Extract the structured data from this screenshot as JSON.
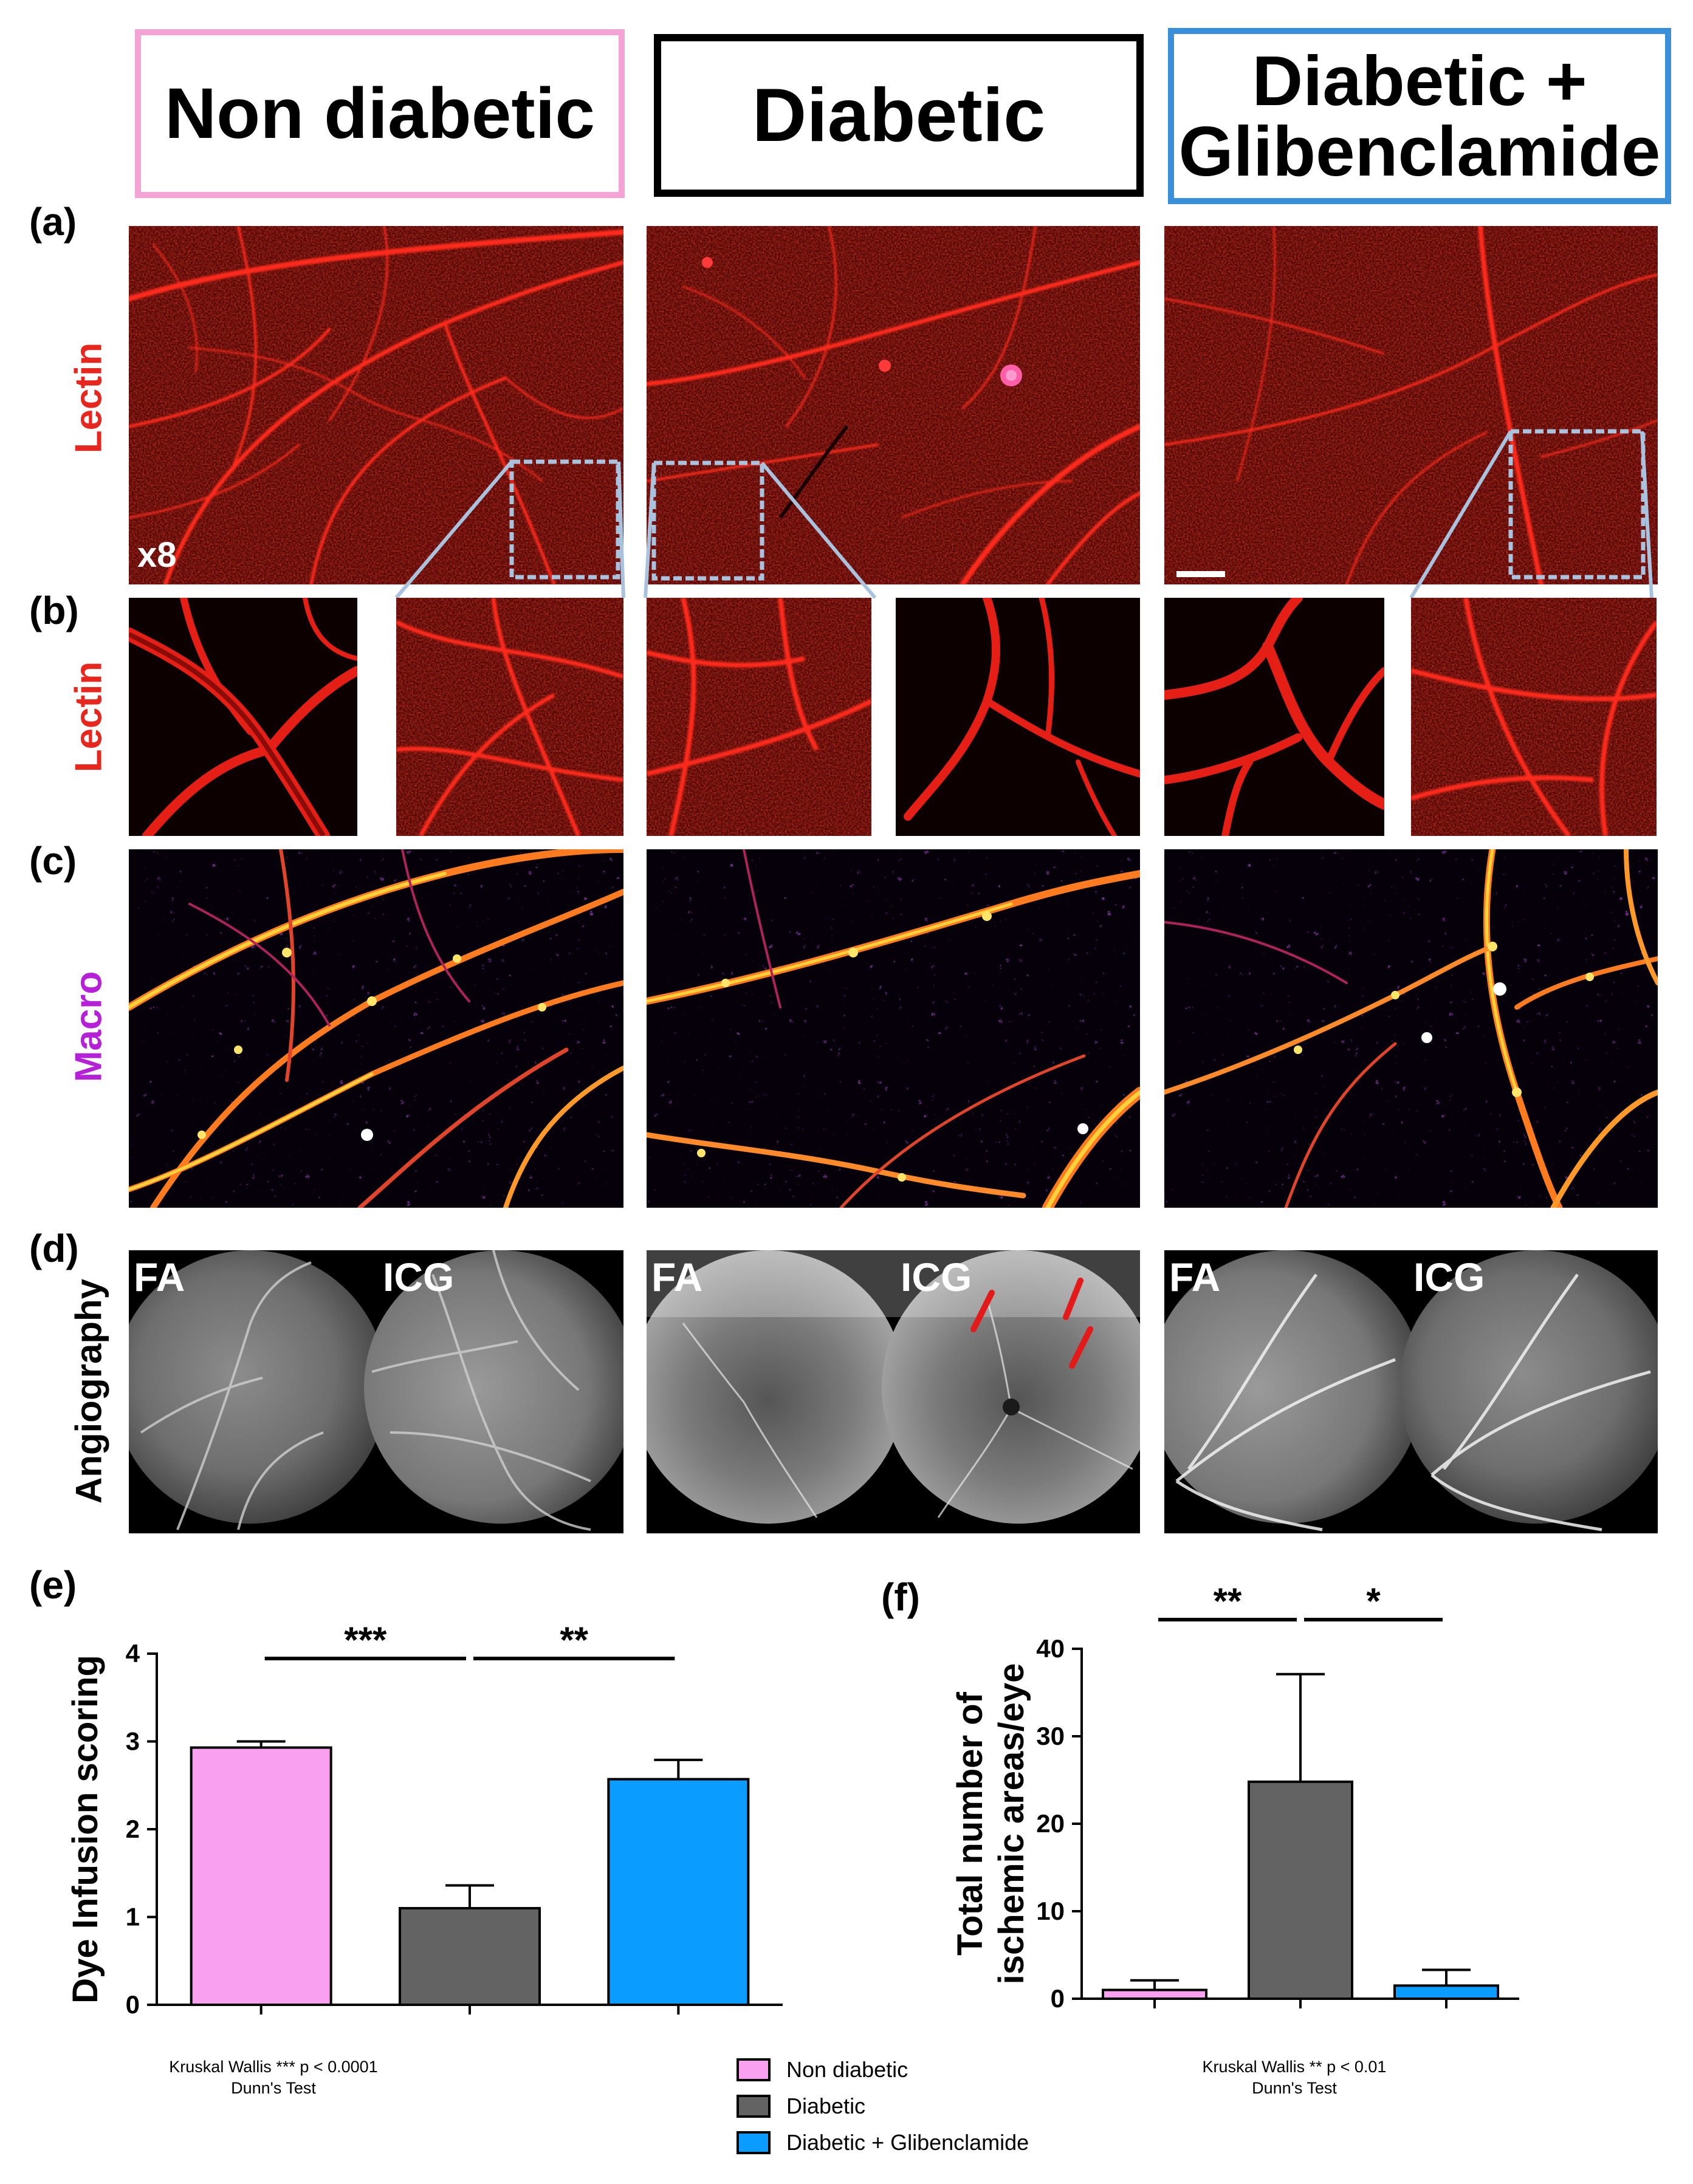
{
  "headers": [
    {
      "label": "Non diabetic",
      "border": "#f4a3d6"
    },
    {
      "label": "Diabetic",
      "border": "#000000"
    },
    {
      "label": "Diabetic +\nGlibenclamide",
      "border": "#3a8fd9"
    }
  ],
  "panel_labels": {
    "a": "(a)",
    "b": "(b)",
    "c": "(c)",
    "d": "(d)",
    "e": "(e)",
    "f": "(f)"
  },
  "row_labels": {
    "lectin_a": "Lectin",
    "lectin_b": "Lectin",
    "macro": "Macro",
    "angiography": "Angiography"
  },
  "row_label_colors": {
    "lectin": "#e8261e",
    "macro": "#b620d8",
    "angiography": "#000000"
  },
  "magnification": "x8",
  "angiography_labels": {
    "fa": "FA",
    "icg": "ICG"
  },
  "colors": {
    "non_diabetic": "#f9a1f0",
    "diabetic": "#636363",
    "glibenclamide": "#0b9cff",
    "lectin_red": "#e0241a",
    "inset_frame": "#a9c2de"
  },
  "chart_data": [
    {
      "type": "bar",
      "categories": [
        "Non diabetic",
        "Diabetic",
        "Diabetic + Glibenclamide"
      ],
      "values": [
        2.93,
        1.1,
        2.57
      ],
      "errors": [
        0.07,
        0.26,
        0.22
      ],
      "ylabel": "Dye Infusion scoring",
      "ylim": [
        0,
        4
      ],
      "yticks": [
        "0",
        "1",
        "2",
        "3",
        "4"
      ],
      "significance": [
        {
          "from": 0,
          "to": 1,
          "label": "***"
        },
        {
          "from": 1,
          "to": 2,
          "label": "**"
        }
      ],
      "note_line1": "Kruskal Wallis *** p < 0.0001",
      "note_line2": "Dunn's Test"
    },
    {
      "type": "bar",
      "categories": [
        "Non diabetic",
        "Diabetic",
        "Diabetic + Glibenclamide"
      ],
      "values": [
        1.0,
        24.8,
        1.5
      ],
      "errors": [
        1.1,
        12.3,
        1.8
      ],
      "ylabel": "Total number of\nischemic areas/eye",
      "ylim": [
        0,
        40
      ],
      "yticks": [
        "0",
        "10",
        "20",
        "30",
        "40"
      ],
      "significance": [
        {
          "from": 0,
          "to": 1,
          "label": "**"
        },
        {
          "from": 1,
          "to": 2,
          "label": "*"
        }
      ],
      "note_line1": "Kruskal Wallis **  p < 0.01",
      "note_line2": "Dunn's Test"
    }
  ],
  "legend": [
    {
      "label": "Non diabetic",
      "color": "#f9a1f0"
    },
    {
      "label": "Diabetic",
      "color": "#636363"
    },
    {
      "label": "Diabetic + Glibenclamide",
      "color": "#0b9cff"
    }
  ]
}
